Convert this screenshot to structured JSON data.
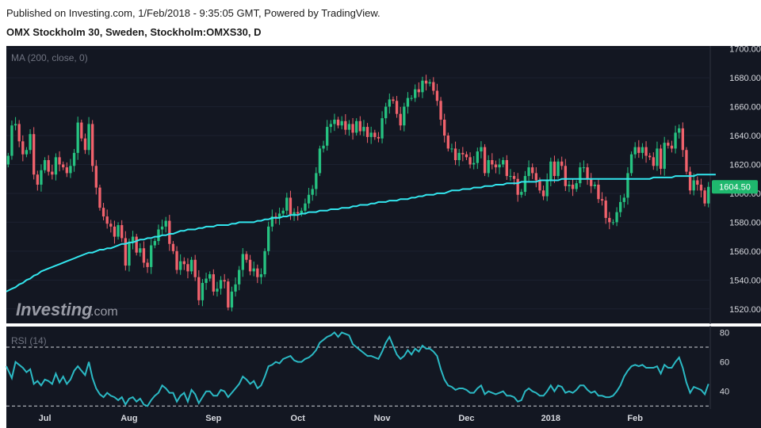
{
  "header": {
    "published": "Published on Investing.com, 1/Feb/2018 - 9:35:05 GMT, Powered by TradingView.",
    "instrument": "OMX Stockholm 30, Sweden, Stockholm:OMXS30, D"
  },
  "watermark": {
    "brand": "Investing",
    "suffix": ".com"
  },
  "colors": {
    "background": "#131722",
    "up": "#26c281",
    "down": "#f0626c",
    "ma": "#33e6ee",
    "rsi": "#2bb9c4",
    "price_badge": "#1fb86e"
  },
  "chart_data": [
    {
      "type": "candlestick",
      "indicator_label": "MA (200, close, 0)",
      "ylim": [
        1510,
        1702
      ],
      "y_ticks": [
        1520,
        1540,
        1560,
        1580,
        1600,
        1620,
        1640,
        1660,
        1680,
        1700
      ],
      "y_tick_labels": [
        "1520.00",
        "1540.00",
        "1560.00",
        "1580.00",
        "1600.00",
        "1620.00",
        "1640.00",
        "1660.00",
        "1680.00",
        "1700.00"
      ],
      "last_price": 1604.5,
      "last_price_label": "1604.50",
      "x_labels": [
        "Jul",
        "Aug",
        "Sep",
        "Oct",
        "Nov",
        "Dec",
        "2018",
        "Feb"
      ],
      "x_label_positions": [
        10,
        33,
        56,
        79,
        102,
        125,
        148,
        171
      ],
      "close": [
        1626,
        1647,
        1648,
        1636,
        1627,
        1630,
        1641,
        1613,
        1606,
        1616,
        1623,
        1615,
        1613,
        1625,
        1620,
        1618,
        1614,
        1619,
        1628,
        1649,
        1638,
        1630,
        1648,
        1619,
        1604,
        1590,
        1584,
        1579,
        1577,
        1570,
        1578,
        1569,
        1550,
        1566,
        1570,
        1559,
        1562,
        1552,
        1549,
        1564,
        1567,
        1575,
        1577,
        1581,
        1565,
        1560,
        1547,
        1553,
        1551,
        1546,
        1554,
        1542,
        1526,
        1538,
        1541,
        1544,
        1532,
        1534,
        1540,
        1539,
        1521,
        1532,
        1537,
        1547,
        1558,
        1554,
        1546,
        1548,
        1542,
        1544,
        1560,
        1577,
        1584,
        1583,
        1586,
        1588,
        1597,
        1585,
        1587,
        1586,
        1588,
        1593,
        1599,
        1603,
        1614,
        1631,
        1633,
        1646,
        1648,
        1651,
        1647,
        1650,
        1644,
        1648,
        1642,
        1650,
        1643,
        1646,
        1639,
        1642,
        1639,
        1638,
        1652,
        1660,
        1665,
        1664,
        1655,
        1647,
        1660,
        1666,
        1666,
        1672,
        1670,
        1678,
        1676,
        1677,
        1671,
        1664,
        1651,
        1640,
        1631,
        1631,
        1623,
        1628,
        1627,
        1625,
        1620,
        1621,
        1629,
        1632,
        1614,
        1623,
        1620,
        1618,
        1620,
        1623,
        1612,
        1612,
        1610,
        1599,
        1601,
        1612,
        1618,
        1614,
        1609,
        1602,
        1598,
        1609,
        1622,
        1612,
        1622,
        1619,
        1605,
        1606,
        1603,
        1607,
        1618,
        1618,
        1610,
        1605,
        1606,
        1596,
        1595,
        1583,
        1580,
        1580,
        1587,
        1594,
        1597,
        1614,
        1627,
        1632,
        1628,
        1632,
        1626,
        1625,
        1619,
        1631,
        1617,
        1635,
        1633,
        1631,
        1642,
        1645,
        1630,
        1615,
        1602,
        1609,
        1606,
        1602,
        1593,
        1604.5
      ],
      "ma200": [
        1532,
        1534,
        1535,
        1537,
        1538,
        1540,
        1541,
        1543,
        1544,
        1546,
        1547,
        1548,
        1549,
        1550,
        1551,
        1552,
        1553,
        1554,
        1555,
        1556,
        1557,
        1558,
        1559,
        1559,
        1560,
        1561,
        1561,
        1562,
        1562,
        1563,
        1564,
        1565,
        1565,
        1566,
        1566,
        1567,
        1568,
        1568,
        1569,
        1569,
        1570,
        1570,
        1571,
        1571,
        1572,
        1572,
        1573,
        1574,
        1574,
        1575,
        1575,
        1575,
        1576,
        1576,
        1577,
        1577,
        1577,
        1578,
        1578,
        1578,
        1578,
        1579,
        1579,
        1580,
        1580,
        1580,
        1580,
        1580,
        1581,
        1581,
        1582,
        1582,
        1583,
        1583,
        1583,
        1584,
        1584,
        1585,
        1585,
        1585,
        1586,
        1586,
        1587,
        1587,
        1587,
        1588,
        1588,
        1588,
        1589,
        1589,
        1589,
        1590,
        1590,
        1590,
        1591,
        1591,
        1592,
        1592,
        1592,
        1593,
        1593,
        1594,
        1594,
        1594,
        1595,
        1595,
        1595,
        1596,
        1596,
        1596,
        1597,
        1597,
        1598,
        1598,
        1599,
        1599,
        1599,
        1600,
        1600,
        1600,
        1601,
        1602,
        1602,
        1602,
        1603,
        1603,
        1603,
        1604,
        1604,
        1604,
        1605,
        1605,
        1605,
        1606,
        1606,
        1606,
        1607,
        1607,
        1607,
        1607,
        1608,
        1608,
        1608,
        1608,
        1608,
        1609,
        1609,
        1609,
        1609,
        1609,
        1609,
        1610,
        1610,
        1610,
        1610,
        1610,
        1610,
        1610,
        1610,
        1610,
        1610,
        1610,
        1610,
        1610,
        1610,
        1610,
        1610,
        1610,
        1610,
        1610,
        1610,
        1610,
        1610,
        1610,
        1610,
        1610,
        1611,
        1611,
        1611,
        1611,
        1611,
        1611,
        1612,
        1612,
        1612,
        1612,
        1612,
        1612,
        1613,
        1613,
        1613,
        1613,
        1613,
        1613
      ]
    },
    {
      "type": "line",
      "indicator_label": "RSI (14)",
      "ylim": [
        28,
        84
      ],
      "y_ticks": [
        40,
        60,
        80
      ],
      "y_tick_labels": [
        "40",
        "60",
        "80"
      ],
      "bands": [
        70,
        30
      ],
      "rsi": [
        57,
        49,
        60,
        58,
        56,
        53,
        55,
        45,
        47,
        44,
        48,
        47,
        45,
        52,
        46,
        50,
        45,
        48,
        54,
        57,
        54,
        51,
        60,
        49,
        42,
        38,
        36,
        39,
        37,
        36,
        34,
        36,
        31,
        35,
        36,
        33,
        35,
        31,
        30,
        34,
        37,
        39,
        44,
        42,
        39,
        39,
        33,
        37,
        39,
        33,
        41,
        38,
        32,
        36,
        40,
        40,
        37,
        37,
        41,
        40,
        36,
        39,
        42,
        45,
        50,
        48,
        45,
        47,
        42,
        44,
        50,
        57,
        58,
        60,
        59,
        62,
        63,
        64,
        61,
        60,
        60,
        62,
        63,
        65,
        68,
        73,
        75,
        77,
        78,
        80,
        77,
        80,
        79,
        78,
        72,
        70,
        68,
        66,
        64,
        64,
        63,
        62,
        67,
        73,
        77,
        71,
        65,
        62,
        64,
        68,
        65,
        69,
        67,
        71,
        69,
        69,
        67,
        64,
        55,
        48,
        44,
        43,
        41,
        42,
        42,
        41,
        39,
        39,
        42,
        44,
        38,
        40,
        39,
        38,
        39,
        40,
        37,
        37,
        36,
        33,
        34,
        40,
        42,
        40,
        39,
        37,
        37,
        40,
        44,
        40,
        44,
        43,
        39,
        40,
        39,
        41,
        44,
        44,
        41,
        39,
        40,
        37,
        37,
        36,
        36,
        37,
        40,
        44,
        50,
        54,
        57,
        58,
        57,
        58,
        56,
        56,
        56,
        57,
        52,
        58,
        56,
        56,
        60,
        63,
        56,
        46,
        39,
        43,
        42,
        41,
        38,
        45
      ]
    }
  ]
}
